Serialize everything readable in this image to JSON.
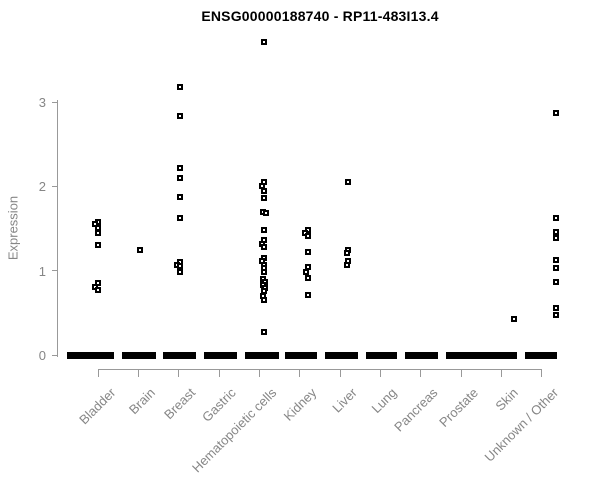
{
  "title": "ENSG00000188740 - RP11-483I13.4",
  "chart_data": {
    "type": "scatter",
    "title": "ENSG00000188740 - RP11-483I13.4",
    "xlabel": "",
    "ylabel": "Expression",
    "ylim": [
      0,
      3.8
    ],
    "yticks": [
      0,
      1,
      2,
      3
    ],
    "grid": "off",
    "legend": "none",
    "marker": "open-square",
    "categories": [
      "Bladder",
      "Brain",
      "Breast",
      "Gastric",
      "Hematopoietic cells",
      "Kidney",
      "Liver",
      "Lung",
      "Pancreas",
      "Prostate",
      "Skin",
      "Unknown / Other"
    ],
    "series": [
      {
        "category": "Bladder",
        "zero_cluster": true,
        "values": [
          1.58,
          1.55,
          1.51,
          1.45,
          1.3,
          0.85,
          0.81,
          0.77
        ]
      },
      {
        "category": "Brain",
        "zero_cluster": true,
        "values": [
          1.25
        ]
      },
      {
        "category": "Breast",
        "zero_cluster": true,
        "values": [
          3.18,
          2.84,
          2.22,
          2.1,
          1.87,
          1.63,
          1.1,
          1.07,
          1.05,
          0.99
        ]
      },
      {
        "category": "Gastric",
        "zero_cluster": true,
        "values": []
      },
      {
        "category": "Hematopoietic cells",
        "zero_cluster": true,
        "values": [
          3.71,
          2.05,
          2.0,
          1.95,
          1.86,
          1.7,
          1.68,
          1.48,
          1.36,
          1.32,
          1.28,
          1.15,
          1.11,
          1.07,
          1.03,
          0.99,
          0.9,
          0.87,
          0.83,
          0.79,
          0.76,
          0.7,
          0.65,
          0.27
        ]
      },
      {
        "category": "Kidney",
        "zero_cluster": true,
        "values": [
          1.48,
          1.45,
          1.41,
          1.22,
          1.04,
          0.98,
          0.91,
          0.71
        ]
      },
      {
        "category": "Liver",
        "zero_cluster": true,
        "values": [
          2.05,
          1.25,
          1.21,
          1.11,
          1.07
        ]
      },
      {
        "category": "Lung",
        "zero_cluster": true,
        "values": []
      },
      {
        "category": "Pancreas",
        "zero_cluster": true,
        "values": []
      },
      {
        "category": "Prostate",
        "zero_cluster": true,
        "values": []
      },
      {
        "category": "Skin",
        "zero_cluster": true,
        "values": [
          0.43
        ]
      },
      {
        "category": "Unknown / Other",
        "zero_cluster": true,
        "values": [
          2.87,
          1.62,
          1.46,
          1.39,
          1.13,
          1.03,
          0.87,
          0.56,
          0.47
        ]
      }
    ]
  },
  "colors": {
    "marker": "#000000",
    "axis": "#999999",
    "axis_text": "#868686",
    "title_text": "#000000",
    "background": "#ffffff"
  },
  "render": {
    "jitter": {
      "Bladder": [
        0,
        -3,
        0,
        0,
        0,
        0,
        -3,
        0
      ],
      "Brain": [
        1
      ],
      "Breast": [
        1,
        1,
        1,
        1,
        1,
        1,
        1,
        -2,
        1,
        1
      ],
      "Gastric": [],
      "Hematopoietic cells": [
        4,
        4,
        2,
        4,
        4,
        3,
        6,
        4,
        4,
        2,
        4,
        4,
        2,
        4,
        4,
        4,
        3,
        5,
        3,
        5,
        4,
        3,
        4,
        4
      ],
      "Kidney": [
        8,
        5,
        8,
        8,
        8,
        6,
        8,
        8
      ],
      "Liver": [
        8,
        8,
        7,
        8,
        7
      ],
      "Lung": [],
      "Pancreas": [],
      "Prostate": [],
      "Skin": [
        13
      ],
      "Unknown / Other": [
        14,
        14,
        14,
        14,
        14,
        14,
        14,
        14,
        14
      ]
    },
    "zero_bar_widths": [
      47,
      34,
      33,
      33,
      34,
      32,
      33,
      31,
      33,
      39,
      32,
      32
    ],
    "zero_bar_dx": [
      -8,
      0,
      1,
      1,
      2,
      1,
      1,
      1,
      1,
      4,
      0,
      -1
    ]
  }
}
